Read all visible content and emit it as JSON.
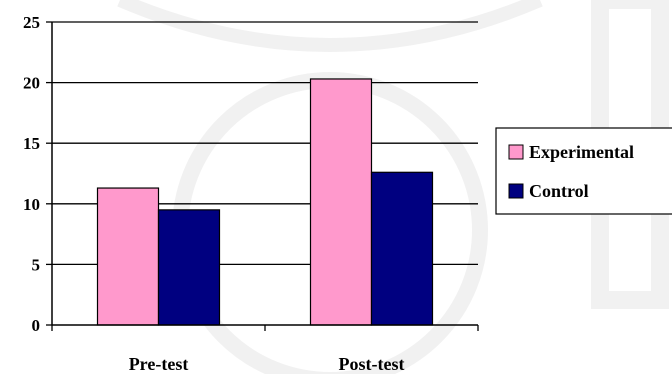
{
  "chart_data": {
    "type": "bar",
    "categories": [
      "Pre-test",
      "Post-test"
    ],
    "series": [
      {
        "name": "Experimental",
        "values": [
          11.3,
          20.3
        ],
        "color": "#ff99cc"
      },
      {
        "name": "Control",
        "values": [
          9.5,
          12.6
        ],
        "color": "#000080"
      }
    ],
    "title": "",
    "xlabel": "",
    "ylabel": "",
    "ylim": [
      0,
      25
    ],
    "yticks": [
      "0",
      "5",
      "10",
      "15",
      "20",
      "25"
    ],
    "grid": true,
    "legend": "right"
  }
}
